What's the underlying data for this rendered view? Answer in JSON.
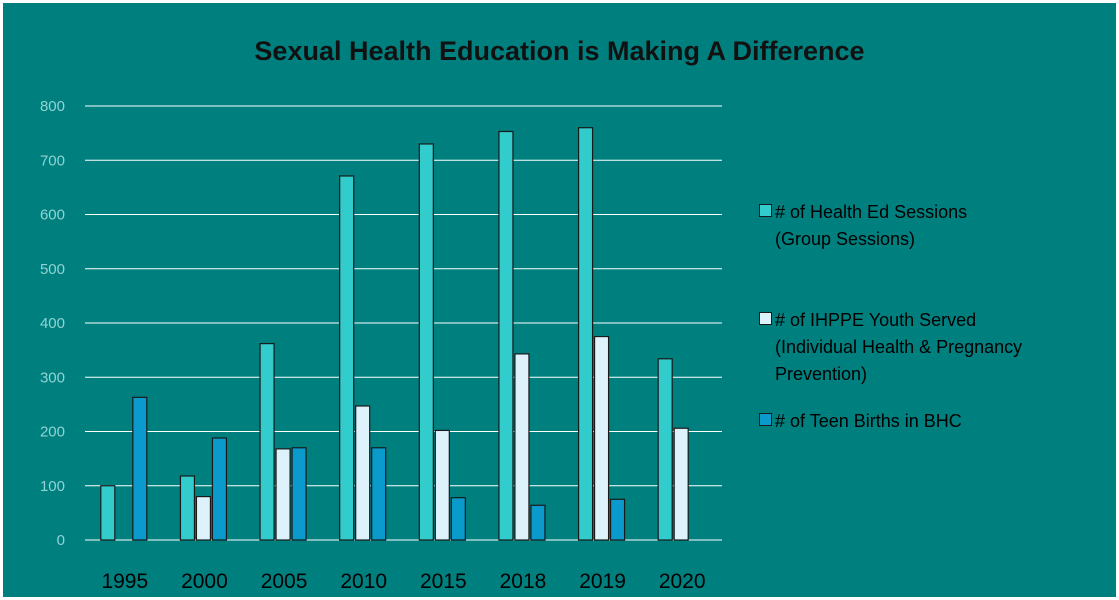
{
  "chart_data": {
    "type": "bar",
    "title": "Sexual Health Education is Making A Difference",
    "categories": [
      "1995",
      "2000",
      "2005",
      "2010",
      "2015",
      "2018",
      "2019",
      "2020"
    ],
    "ylim": [
      0,
      800
    ],
    "yticks": [
      "0",
      "100",
      "200",
      "300",
      "400",
      "500",
      "600",
      "700",
      "800"
    ],
    "grid": true,
    "legend_position": "right",
    "series": [
      {
        "name": "# of Health Ed Sessions\n(Group Sessions)",
        "color": "#33cccc",
        "values": [
          100,
          118,
          362,
          671,
          730,
          753,
          760,
          334
        ]
      },
      {
        "name": "# of IHPPE Youth Served\n(Individual Health & Pregnancy\nPrevention)",
        "color": "#ddf2fb",
        "values": [
          null,
          80,
          168,
          247,
          202,
          343,
          375,
          206
        ]
      },
      {
        "name": "# of Teen Births in BHC",
        "color": "#0a9bcc",
        "values": [
          263,
          188,
          170,
          170,
          78,
          64,
          75,
          null
        ]
      }
    ]
  }
}
